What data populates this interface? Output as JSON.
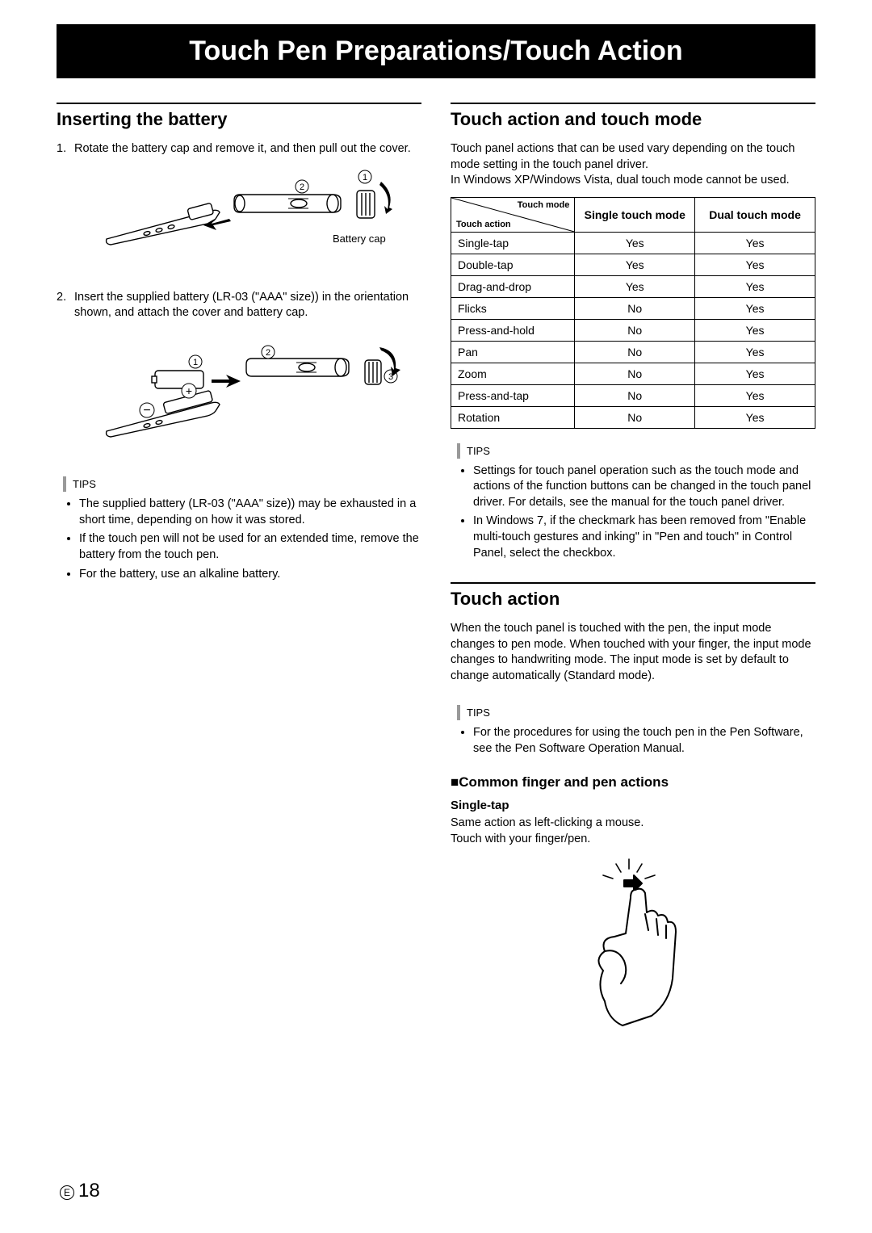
{
  "chapter_title": "Touch Pen Preparations/Touch Action",
  "page_number": "18",
  "page_prefix": "E",
  "left": {
    "h_insert": "Inserting the battery",
    "step1": "Rotate the battery cap and remove it, and then pull out the cover.",
    "step2": "Insert the supplied battery (LR-03 (\"AAA\" size)) in the orientation shown, and attach the cover and battery cap.",
    "battery_cap_label": "Battery cap",
    "tips_label": "TIPS",
    "tips": [
      "The supplied battery (LR-03 (\"AAA\" size)) may be exhausted in a short time, depending on how it was stored.",
      "If the touch pen will not be used for an extended time, remove the battery from the touch pen.",
      "For the battery, use an alkaline battery."
    ]
  },
  "right": {
    "h_mode": "Touch action and touch mode",
    "mode_intro1": "Touch panel actions that can be used vary depending on the touch mode setting in the touch panel driver.",
    "mode_intro2": "In Windows XP/Windows Vista, dual touch mode cannot be used.",
    "table": {
      "diag_mode": "Touch mode",
      "diag_action": "Touch action",
      "col_single": "Single touch mode",
      "col_dual": "Dual touch mode",
      "rows": [
        {
          "a": "Single-tap",
          "s": "Yes",
          "d": "Yes"
        },
        {
          "a": "Double-tap",
          "s": "Yes",
          "d": "Yes"
        },
        {
          "a": "Drag-and-drop",
          "s": "Yes",
          "d": "Yes"
        },
        {
          "a": "Flicks",
          "s": "No",
          "d": "Yes"
        },
        {
          "a": "Press-and-hold",
          "s": "No",
          "d": "Yes"
        },
        {
          "a": "Pan",
          "s": "No",
          "d": "Yes"
        },
        {
          "a": "Zoom",
          "s": "No",
          "d": "Yes"
        },
        {
          "a": "Press-and-tap",
          "s": "No",
          "d": "Yes"
        },
        {
          "a": "Rotation",
          "s": "No",
          "d": "Yes"
        }
      ]
    },
    "tips_label": "TIPS",
    "mode_tips": [
      "Settings for touch panel operation such as the touch mode and actions of the function buttons can be changed in the touch panel driver. For details, see the manual for the touch panel driver.",
      "In Windows 7, if the checkmark has been removed from \"Enable multi-touch gestures and inking\" in \"Pen and touch\" in Control Panel, select the checkbox."
    ],
    "h_action": "Touch action",
    "action_intro": "When the touch panel is touched with the pen, the input mode changes to pen mode. When touched with your finger, the input mode changes to handwriting mode. The input mode is set by default to change automatically (Standard mode).",
    "action_tips": [
      "For the procedures for using the touch pen in the Pen Software, see the Pen Software Operation Manual."
    ],
    "sub_common": "Common finger and pen actions",
    "sub_common_prefix": "■",
    "singletap": {
      "name": "Single-tap",
      "line1": "Same action as left-clicking a mouse.",
      "line2": "Touch with your finger/pen."
    }
  }
}
